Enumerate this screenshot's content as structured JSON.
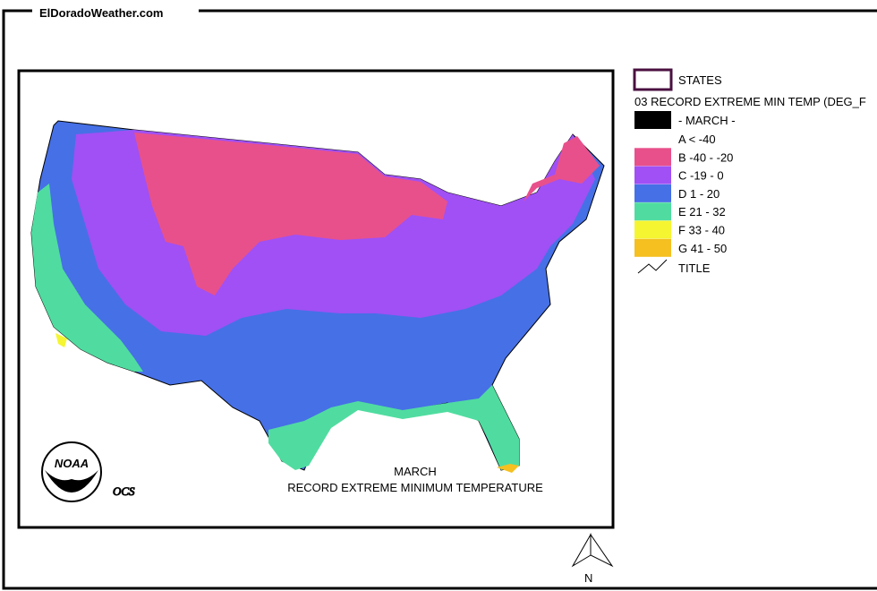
{
  "header": {
    "site": "ElDoradoWeather.com"
  },
  "map": {
    "caption_month": "MARCH",
    "caption_title": "RECORD EXTREME MINIMUM TEMPERATURE",
    "logo_text": "NOAA",
    "credit": "OCS",
    "north": "N"
  },
  "legend": {
    "states": "STATES",
    "layer": "03 RECORD EXTREME MIN TEMP (DEG_F",
    "period": {
      "label": "- MARCH -",
      "color": "#000000"
    },
    "items": [
      {
        "label": "A < -40"
      },
      {
        "label": "B -40 - -20",
        "color": "#e8508c"
      },
      {
        "label": "C -19 - 0",
        "color": "#a050f5"
      },
      {
        "label": "D 1 - 20",
        "color": "#4670e6"
      },
      {
        "label": "E 21 - 32",
        "color": "#50dca0"
      },
      {
        "label": "F 33 - 40",
        "color": "#f5f532"
      },
      {
        "label": "G 41 - 50",
        "color": "#f5c020"
      }
    ],
    "title": "TITLE"
  }
}
